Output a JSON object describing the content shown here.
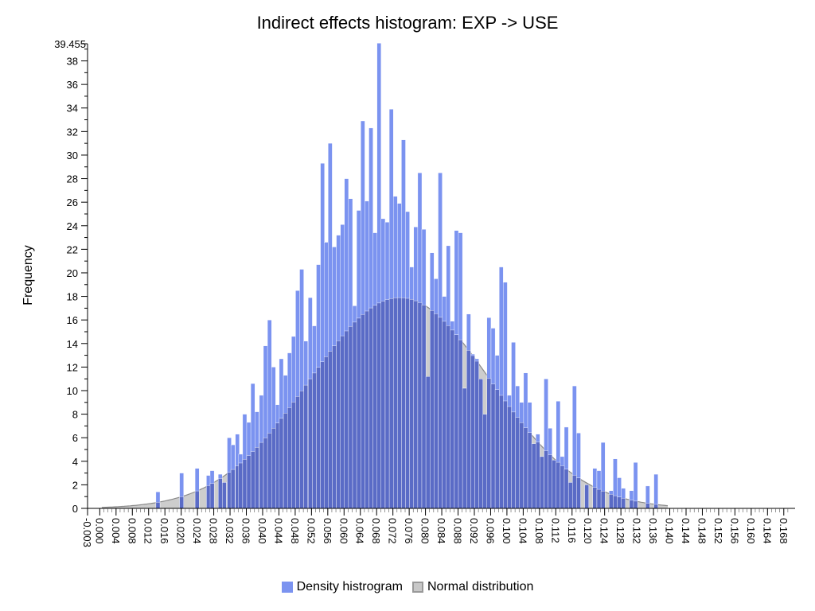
{
  "chart_data": {
    "type": "bar",
    "title": "Indirect effects histogram: EXP -> USE",
    "xlabel": "",
    "ylabel": "Frequency",
    "ylim": [
      0,
      39.455
    ],
    "xlim": [
      -0.003,
      0.17
    ],
    "y_max_label": "39.455",
    "y_ticks": [
      0,
      2,
      4,
      6,
      8,
      10,
      12,
      14,
      16,
      18,
      20,
      22,
      24,
      26,
      28,
      30,
      32,
      34,
      36,
      38
    ],
    "x_ticks": [
      "-0.003",
      "0.000",
      "0.004",
      "0.008",
      "0.012",
      "0.016",
      "0.020",
      "0.024",
      "0.028",
      "0.032",
      "0.036",
      "0.040",
      "0.044",
      "0.048",
      "0.052",
      "0.056",
      "0.060",
      "0.064",
      "0.068",
      "0.072",
      "0.076",
      "0.080",
      "0.084",
      "0.088",
      "0.092",
      "0.096",
      "0.100",
      "0.104",
      "0.108",
      "0.112",
      "0.116",
      "0.120",
      "0.124",
      "0.128",
      "0.132",
      "0.136",
      "0.140",
      "0.144",
      "0.148",
      "0.152",
      "0.156",
      "0.160",
      "0.164",
      "0.168"
    ],
    "normal": {
      "mean": 0.0737,
      "peak": 17.9,
      "sd": 0.0223
    },
    "series": [
      {
        "name": "Density histrogram",
        "color": "#7b93f0",
        "bins": [
          {
            "x": 0.0143,
            "y": 1.4
          },
          {
            "x": 0.0201,
            "y": 3.0
          },
          {
            "x": 0.0239,
            "y": 3.4
          },
          {
            "x": 0.0267,
            "y": 2.8
          },
          {
            "x": 0.0276,
            "y": 3.2
          },
          {
            "x": 0.0296,
            "y": 2.9
          },
          {
            "x": 0.0306,
            "y": 2.2
          },
          {
            "x": 0.0318,
            "y": 6.0
          },
          {
            "x": 0.0327,
            "y": 5.4
          },
          {
            "x": 0.0338,
            "y": 6.3
          },
          {
            "x": 0.0346,
            "y": 4.6
          },
          {
            "x": 0.0356,
            "y": 8.0
          },
          {
            "x": 0.0366,
            "y": 7.3
          },
          {
            "x": 0.0376,
            "y": 10.6
          },
          {
            "x": 0.0386,
            "y": 8.2
          },
          {
            "x": 0.0397,
            "y": 9.6
          },
          {
            "x": 0.0407,
            "y": 13.8
          },
          {
            "x": 0.0417,
            "y": 16.0
          },
          {
            "x": 0.0427,
            "y": 12.0
          },
          {
            "x": 0.0437,
            "y": 8.8
          },
          {
            "x": 0.0446,
            "y": 12.7
          },
          {
            "x": 0.0456,
            "y": 11.3
          },
          {
            "x": 0.0466,
            "y": 13.2
          },
          {
            "x": 0.0476,
            "y": 14.6
          },
          {
            "x": 0.0486,
            "y": 18.5
          },
          {
            "x": 0.0496,
            "y": 20.3
          },
          {
            "x": 0.0506,
            "y": 14.2
          },
          {
            "x": 0.0517,
            "y": 17.9
          },
          {
            "x": 0.0527,
            "y": 15.5
          },
          {
            "x": 0.0537,
            "y": 20.7
          },
          {
            "x": 0.0547,
            "y": 29.3
          },
          {
            "x": 0.0556,
            "y": 22.6
          },
          {
            "x": 0.0566,
            "y": 31.0
          },
          {
            "x": 0.0576,
            "y": 22.2
          },
          {
            "x": 0.0586,
            "y": 23.2
          },
          {
            "x": 0.0596,
            "y": 24.1
          },
          {
            "x": 0.0606,
            "y": 28.0
          },
          {
            "x": 0.0616,
            "y": 26.3
          },
          {
            "x": 0.0626,
            "y": 17.2
          },
          {
            "x": 0.0636,
            "y": 25.3
          },
          {
            "x": 0.0646,
            "y": 32.9
          },
          {
            "x": 0.0656,
            "y": 26.1
          },
          {
            "x": 0.0666,
            "y": 32.3
          },
          {
            "x": 0.0676,
            "y": 23.4
          },
          {
            "x": 0.0686,
            "y": 39.5
          },
          {
            "x": 0.0696,
            "y": 24.6
          },
          {
            "x": 0.0706,
            "y": 24.3
          },
          {
            "x": 0.0716,
            "y": 33.9
          },
          {
            "x": 0.0726,
            "y": 26.5
          },
          {
            "x": 0.0736,
            "y": 25.9
          },
          {
            "x": 0.0746,
            "y": 31.3
          },
          {
            "x": 0.0756,
            "y": 25.2
          },
          {
            "x": 0.0766,
            "y": 20.5
          },
          {
            "x": 0.0776,
            "y": 23.9
          },
          {
            "x": 0.0786,
            "y": 28.5
          },
          {
            "x": 0.0796,
            "y": 23.7
          },
          {
            "x": 0.0806,
            "y": 11.2
          },
          {
            "x": 0.0816,
            "y": 21.7
          },
          {
            "x": 0.0826,
            "y": 19.5
          },
          {
            "x": 0.0836,
            "y": 28.5
          },
          {
            "x": 0.0846,
            "y": 18.0
          },
          {
            "x": 0.0856,
            "y": 22.3
          },
          {
            "x": 0.0866,
            "y": 15.9
          },
          {
            "x": 0.0876,
            "y": 23.6
          },
          {
            "x": 0.0886,
            "y": 23.4
          },
          {
            "x": 0.0896,
            "y": 10.2
          },
          {
            "x": 0.0906,
            "y": 16.5
          },
          {
            "x": 0.0916,
            "y": 13.1
          },
          {
            "x": 0.0926,
            "y": 12.7
          },
          {
            "x": 0.0936,
            "y": 11.0
          },
          {
            "x": 0.0946,
            "y": 8.0
          },
          {
            "x": 0.0956,
            "y": 16.2
          },
          {
            "x": 0.0966,
            "y": 15.3
          },
          {
            "x": 0.0976,
            "y": 13.0
          },
          {
            "x": 0.0986,
            "y": 20.5
          },
          {
            "x": 0.0996,
            "y": 19.2
          },
          {
            "x": 0.1006,
            "y": 9.6
          },
          {
            "x": 0.1016,
            "y": 14.1
          },
          {
            "x": 0.1026,
            "y": 10.4
          },
          {
            "x": 0.1036,
            "y": 9.0
          },
          {
            "x": 0.1046,
            "y": 11.5
          },
          {
            "x": 0.1056,
            "y": 9.0
          },
          {
            "x": 0.1066,
            "y": 5.5
          },
          {
            "x": 0.1076,
            "y": 6.3
          },
          {
            "x": 0.1086,
            "y": 4.4
          },
          {
            "x": 0.1096,
            "y": 11.0
          },
          {
            "x": 0.1106,
            "y": 6.8
          },
          {
            "x": 0.1116,
            "y": 4.1
          },
          {
            "x": 0.1126,
            "y": 9.1
          },
          {
            "x": 0.1136,
            "y": 4.4
          },
          {
            "x": 0.1146,
            "y": 6.9
          },
          {
            "x": 0.1156,
            "y": 2.2
          },
          {
            "x": 0.1166,
            "y": 10.4
          },
          {
            "x": 0.1176,
            "y": 6.4
          },
          {
            "x": 0.1196,
            "y": 2.0
          },
          {
            "x": 0.1216,
            "y": 3.4
          },
          {
            "x": 0.1226,
            "y": 3.2
          },
          {
            "x": 0.1236,
            "y": 5.6
          },
          {
            "x": 0.1256,
            "y": 1.5
          },
          {
            "x": 0.1266,
            "y": 4.2
          },
          {
            "x": 0.1276,
            "y": 2.6
          },
          {
            "x": 0.1286,
            "y": 1.7
          },
          {
            "x": 0.1306,
            "y": 1.5
          },
          {
            "x": 0.1316,
            "y": 3.9
          },
          {
            "x": 0.1346,
            "y": 1.9
          },
          {
            "x": 0.1366,
            "y": 2.9
          }
        ]
      },
      {
        "name": "Normal distribution",
        "color": "#c8c8c8"
      }
    ],
    "legend": {
      "position": "bottom-center"
    },
    "grid": false
  },
  "legend_labels": {
    "density": "Density histrogram",
    "normal": "Normal distribution"
  }
}
